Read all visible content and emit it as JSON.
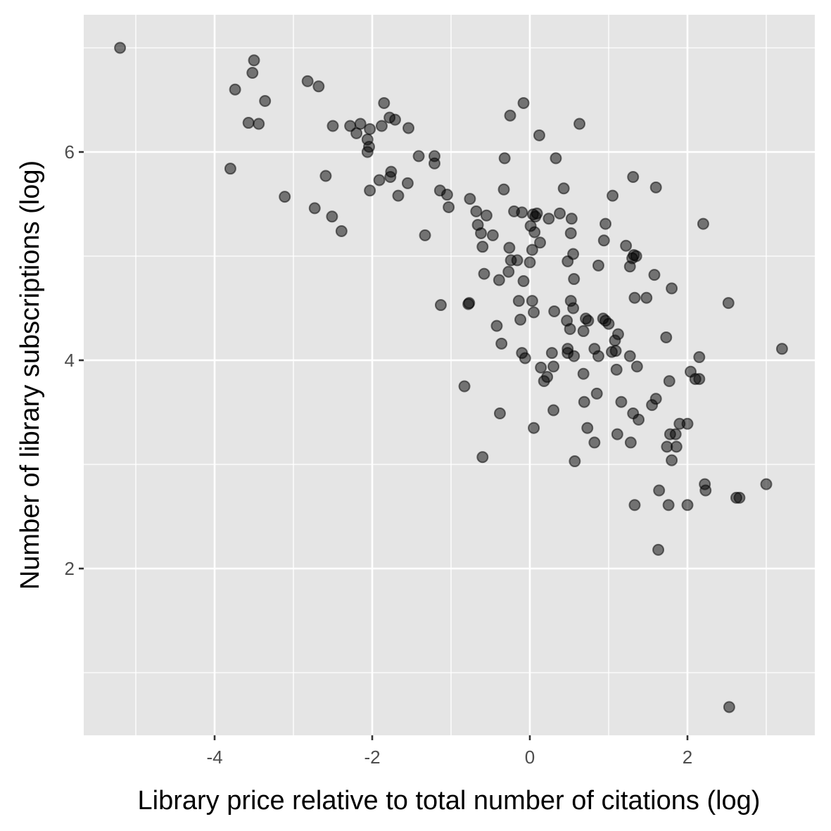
{
  "chart_data": {
    "type": "scatter",
    "title": "",
    "xlabel": "Library price relative to total number of citations (log)",
    "ylabel": "Number of library subscriptions (log)",
    "xlim": [
      -5.55,
      3.7
    ],
    "ylim": [
      0.45,
      7.3
    ],
    "x_ticks": [
      -4,
      -2,
      0,
      2
    ],
    "y_ticks": [
      2,
      4,
      6
    ],
    "x_tick_labels": [
      "-4",
      "-2",
      "0",
      "2"
    ],
    "y_tick_labels": [
      "2",
      "4",
      "6"
    ],
    "grid": true,
    "legend": "none",
    "point_color": "#000000",
    "point_alpha": 0.5,
    "panel_background": "#e5e5e5",
    "points": [
      {
        "x": -5.2,
        "y": 7.0
      },
      {
        "x": -3.5,
        "y": 6.88
      },
      {
        "x": -3.52,
        "y": 6.76
      },
      {
        "x": -3.74,
        "y": 6.6
      },
      {
        "x": -3.36,
        "y": 6.49
      },
      {
        "x": -3.57,
        "y": 6.28
      },
      {
        "x": -3.44,
        "y": 6.27
      },
      {
        "x": -3.8,
        "y": 5.84
      },
      {
        "x": -3.11,
        "y": 5.57
      },
      {
        "x": -2.82,
        "y": 6.68
      },
      {
        "x": -2.68,
        "y": 6.63
      },
      {
        "x": -2.5,
        "y": 6.25
      },
      {
        "x": -2.28,
        "y": 6.25
      },
      {
        "x": -2.15,
        "y": 6.27
      },
      {
        "x": -2.2,
        "y": 6.18
      },
      {
        "x": -2.06,
        "y": 6.12
      },
      {
        "x": -2.03,
        "y": 6.22
      },
      {
        "x": -2.04,
        "y": 6.05
      },
      {
        "x": -2.06,
        "y": 6.0
      },
      {
        "x": -1.88,
        "y": 6.25
      },
      {
        "x": -1.85,
        "y": 6.47
      },
      {
        "x": -1.78,
        "y": 6.33
      },
      {
        "x": -1.71,
        "y": 6.31
      },
      {
        "x": -1.54,
        "y": 6.23
      },
      {
        "x": -2.59,
        "y": 5.77
      },
      {
        "x": -2.73,
        "y": 5.46
      },
      {
        "x": -2.51,
        "y": 5.38
      },
      {
        "x": -2.39,
        "y": 5.24
      },
      {
        "x": -2.03,
        "y": 5.63
      },
      {
        "x": -1.91,
        "y": 5.73
      },
      {
        "x": -1.77,
        "y": 5.76
      },
      {
        "x": -1.76,
        "y": 5.81
      },
      {
        "x": -1.67,
        "y": 5.58
      },
      {
        "x": -1.55,
        "y": 5.7
      },
      {
        "x": -1.41,
        "y": 5.96
      },
      {
        "x": -1.21,
        "y": 5.96
      },
      {
        "x": -1.21,
        "y": 5.89
      },
      {
        "x": -1.14,
        "y": 5.63
      },
      {
        "x": -1.05,
        "y": 5.59
      },
      {
        "x": -1.03,
        "y": 5.47
      },
      {
        "x": -1.33,
        "y": 5.2
      },
      {
        "x": -1.13,
        "y": 4.53
      },
      {
        "x": -0.78,
        "y": 4.54
      },
      {
        "x": -0.77,
        "y": 4.55
      },
      {
        "x": -0.83,
        "y": 3.75
      },
      {
        "x": -0.76,
        "y": 5.55
      },
      {
        "x": -0.68,
        "y": 5.43
      },
      {
        "x": -0.66,
        "y": 5.3
      },
      {
        "x": -0.62,
        "y": 5.22
      },
      {
        "x": -0.6,
        "y": 5.09
      },
      {
        "x": -0.55,
        "y": 5.39
      },
      {
        "x": -0.47,
        "y": 5.2
      },
      {
        "x": -0.58,
        "y": 4.83
      },
      {
        "x": -0.42,
        "y": 4.33
      },
      {
        "x": -0.36,
        "y": 4.16
      },
      {
        "x": -0.39,
        "y": 4.77
      },
      {
        "x": -0.38,
        "y": 3.49
      },
      {
        "x": -0.6,
        "y": 3.07
      },
      {
        "x": -0.33,
        "y": 5.64
      },
      {
        "x": -0.32,
        "y": 5.94
      },
      {
        "x": -0.25,
        "y": 6.35
      },
      {
        "x": -0.08,
        "y": 6.47
      },
      {
        "x": -0.2,
        "y": 5.43
      },
      {
        "x": -0.1,
        "y": 5.42
      },
      {
        "x": -0.26,
        "y": 5.08
      },
      {
        "x": -0.24,
        "y": 4.96
      },
      {
        "x": -0.16,
        "y": 4.96
      },
      {
        "x": -0.27,
        "y": 4.85
      },
      {
        "x": -0.08,
        "y": 4.76
      },
      {
        "x": -0.14,
        "y": 4.57
      },
      {
        "x": -0.12,
        "y": 4.39
      },
      {
        "x": -0.1,
        "y": 4.07
      },
      {
        "x": -0.06,
        "y": 4.02
      },
      {
        "x": 0.01,
        "y": 5.29
      },
      {
        "x": 0.04,
        "y": 5.4
      },
      {
        "x": 0.07,
        "y": 5.38
      },
      {
        "x": 0.09,
        "y": 5.41
      },
      {
        "x": 0.06,
        "y": 5.23
      },
      {
        "x": 0.03,
        "y": 5.06
      },
      {
        "x": 0.13,
        "y": 5.13
      },
      {
        "x": 0.0,
        "y": 4.94
      },
      {
        "x": 0.03,
        "y": 4.57
      },
      {
        "x": 0.05,
        "y": 4.46
      },
      {
        "x": 0.05,
        "y": 3.35
      },
      {
        "x": 0.12,
        "y": 6.16
      },
      {
        "x": 0.24,
        "y": 5.36
      },
      {
        "x": 0.33,
        "y": 5.94
      },
      {
        "x": 0.38,
        "y": 5.41
      },
      {
        "x": 0.43,
        "y": 5.65
      },
      {
        "x": 0.63,
        "y": 6.27
      },
      {
        "x": 0.53,
        "y": 5.36
      },
      {
        "x": 0.52,
        "y": 5.22
      },
      {
        "x": 0.55,
        "y": 5.02
      },
      {
        "x": 0.48,
        "y": 4.95
      },
      {
        "x": 0.56,
        "y": 4.78
      },
      {
        "x": 0.52,
        "y": 4.57
      },
      {
        "x": 0.55,
        "y": 4.5
      },
      {
        "x": 0.47,
        "y": 4.38
      },
      {
        "x": 0.51,
        "y": 4.3
      },
      {
        "x": 0.31,
        "y": 4.47
      },
      {
        "x": 0.48,
        "y": 4.11
      },
      {
        "x": 0.48,
        "y": 4.07
      },
      {
        "x": 0.56,
        "y": 4.04
      },
      {
        "x": 0.28,
        "y": 4.07
      },
      {
        "x": 0.3,
        "y": 3.94
      },
      {
        "x": 0.14,
        "y": 3.93
      },
      {
        "x": 0.18,
        "y": 3.8
      },
      {
        "x": 0.22,
        "y": 3.84
      },
      {
        "x": 0.3,
        "y": 3.52
      },
      {
        "x": 0.57,
        "y": 3.03
      },
      {
        "x": 0.68,
        "y": 4.28
      },
      {
        "x": 0.71,
        "y": 4.4
      },
      {
        "x": 0.74,
        "y": 4.38
      },
      {
        "x": 0.68,
        "y": 3.87
      },
      {
        "x": 0.69,
        "y": 3.6
      },
      {
        "x": 0.73,
        "y": 3.35
      },
      {
        "x": 0.82,
        "y": 4.11
      },
      {
        "x": 0.87,
        "y": 4.04
      },
      {
        "x": 0.85,
        "y": 3.68
      },
      {
        "x": 0.82,
        "y": 3.21
      },
      {
        "x": 0.87,
        "y": 4.91
      },
      {
        "x": 0.93,
        "y": 4.4
      },
      {
        "x": 0.96,
        "y": 4.38
      },
      {
        "x": 1.0,
        "y": 4.35
      },
      {
        "x": 0.94,
        "y": 5.15
      },
      {
        "x": 0.96,
        "y": 5.31
      },
      {
        "x": 1.05,
        "y": 5.58
      },
      {
        "x": 1.04,
        "y": 4.08
      },
      {
        "x": 1.08,
        "y": 4.19
      },
      {
        "x": 1.12,
        "y": 4.25
      },
      {
        "x": 1.09,
        "y": 4.09
      },
      {
        "x": 1.1,
        "y": 3.91
      },
      {
        "x": 1.16,
        "y": 3.6
      },
      {
        "x": 1.11,
        "y": 3.29
      },
      {
        "x": 1.22,
        "y": 5.1
      },
      {
        "x": 1.27,
        "y": 4.9
      },
      {
        "x": 1.3,
        "y": 4.98
      },
      {
        "x": 1.32,
        "y": 5.01
      },
      {
        "x": 1.35,
        "y": 5.0
      },
      {
        "x": 1.31,
        "y": 5.76
      },
      {
        "x": 1.27,
        "y": 4.04
      },
      {
        "x": 1.33,
        "y": 4.6
      },
      {
        "x": 1.48,
        "y": 4.6
      },
      {
        "x": 1.36,
        "y": 3.94
      },
      {
        "x": 1.31,
        "y": 3.49
      },
      {
        "x": 1.38,
        "y": 3.43
      },
      {
        "x": 1.28,
        "y": 3.21
      },
      {
        "x": 1.33,
        "y": 2.61
      },
      {
        "x": 1.6,
        "y": 5.66
      },
      {
        "x": 1.58,
        "y": 4.82
      },
      {
        "x": 1.8,
        "y": 4.69
      },
      {
        "x": 1.73,
        "y": 4.22
      },
      {
        "x": 1.6,
        "y": 3.63
      },
      {
        "x": 1.55,
        "y": 3.57
      },
      {
        "x": 1.77,
        "y": 3.8
      },
      {
        "x": 1.78,
        "y": 3.29
      },
      {
        "x": 1.74,
        "y": 3.17
      },
      {
        "x": 1.85,
        "y": 3.29
      },
      {
        "x": 1.86,
        "y": 3.17
      },
      {
        "x": 1.9,
        "y": 3.39
      },
      {
        "x": 1.8,
        "y": 3.04
      },
      {
        "x": 1.64,
        "y": 2.75
      },
      {
        "x": 1.76,
        "y": 2.61
      },
      {
        "x": 1.63,
        "y": 2.18
      },
      {
        "x": 2.0,
        "y": 3.39
      },
      {
        "x": 2.04,
        "y": 3.89
      },
      {
        "x": 2.1,
        "y": 3.82
      },
      {
        "x": 2.15,
        "y": 3.82
      },
      {
        "x": 2.15,
        "y": 4.03
      },
      {
        "x": 2.2,
        "y": 5.31
      },
      {
        "x": 2.22,
        "y": 2.81
      },
      {
        "x": 2.23,
        "y": 2.75
      },
      {
        "x": 2.0,
        "y": 2.61
      },
      {
        "x": 2.52,
        "y": 4.55
      },
      {
        "x": 2.62,
        "y": 2.68
      },
      {
        "x": 2.66,
        "y": 2.68
      },
      {
        "x": 2.53,
        "y": 0.67
      },
      {
        "x": 3.0,
        "y": 2.81
      },
      {
        "x": 3.2,
        "y": 4.11
      }
    ]
  }
}
